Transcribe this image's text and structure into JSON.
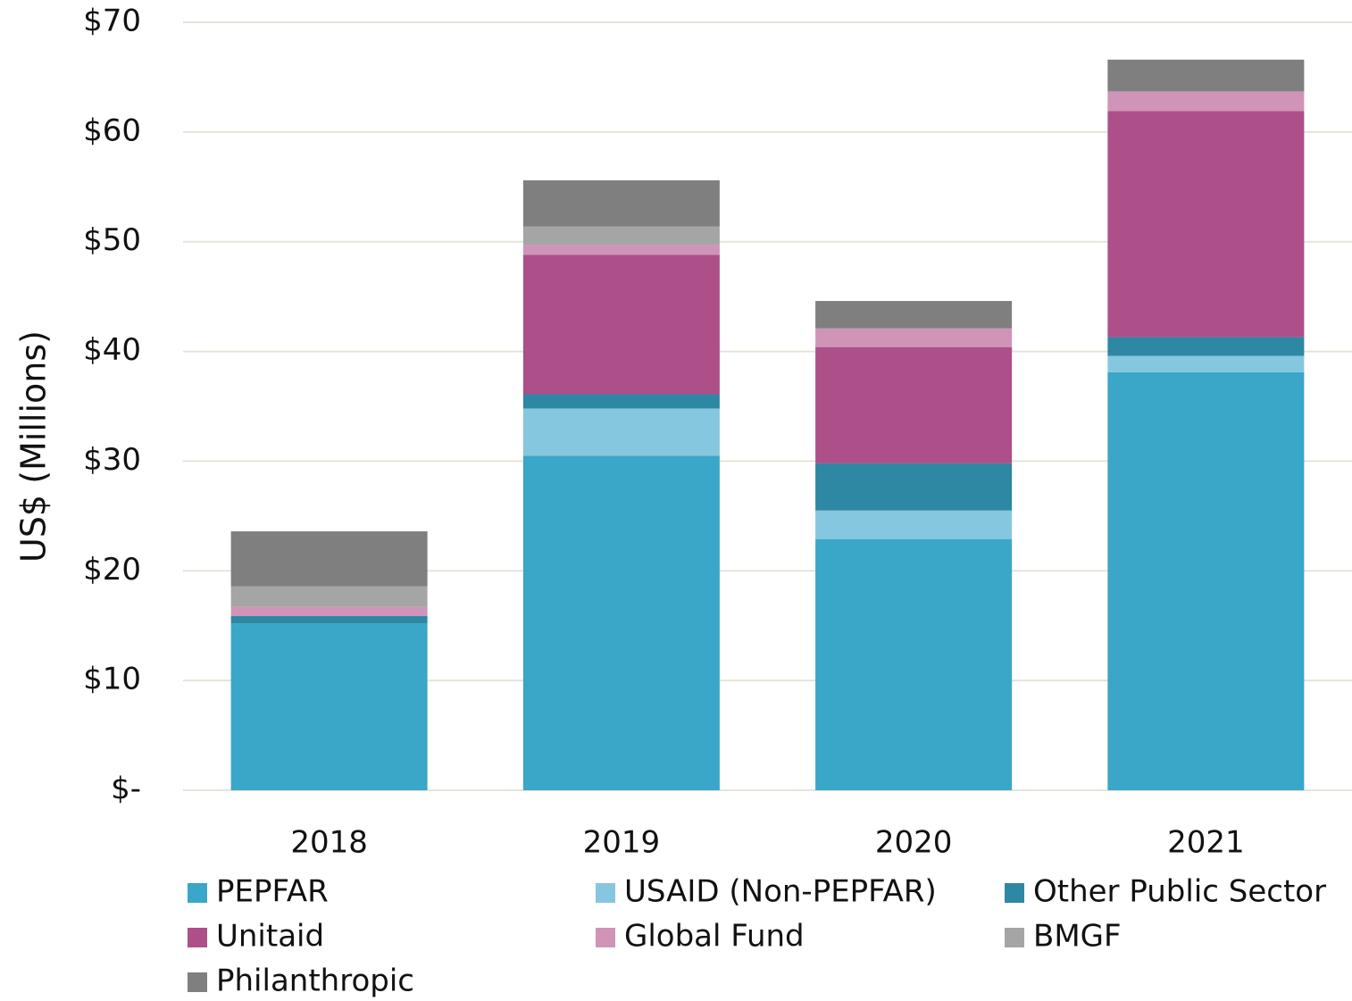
{
  "chart_data": {
    "type": "stacked_bar",
    "y_label": "US$ (Millions)",
    "categories": [
      "2018",
      "2019",
      "2020",
      "2021"
    ],
    "series": [
      {
        "name": "PEPFAR",
        "color": "#3aa6c8",
        "values": [
          15.2,
          30.5,
          22.9,
          38.1
        ]
      },
      {
        "name": "USAID (Non-PEPFAR)",
        "color": "#85c7de",
        "values": [
          0,
          4.3,
          2.6,
          1.5
        ]
      },
      {
        "name": "Other Public Sector",
        "color": "#2e87a3",
        "values": [
          0.7,
          1.3,
          4.3,
          1.7
        ]
      },
      {
        "name": "Unitaid",
        "color": "#ad4f88",
        "values": [
          0,
          12.7,
          10.6,
          20.6
        ]
      },
      {
        "name": "Global Fund",
        "color": "#d094b8",
        "values": [
          0.8,
          0.9,
          1.7,
          1.8
        ]
      },
      {
        "name": "BMGF",
        "color": "#a5a5a5",
        "values": [
          1.9,
          1.7,
          0,
          0
        ]
      },
      {
        "name": "Philanthropic",
        "color": "#7f7f7f",
        "values": [
          5.0,
          4.2,
          2.5,
          2.9
        ]
      }
    ],
    "ylim": [
      0,
      70
    ],
    "yticks": [
      {
        "value": 0,
        "label": "$-"
      },
      {
        "value": 10,
        "label": "$10"
      },
      {
        "value": 20,
        "label": "$20"
      },
      {
        "value": 30,
        "label": "$30"
      },
      {
        "value": 40,
        "label": "$40"
      },
      {
        "value": 50,
        "label": "$50"
      },
      {
        "value": 60,
        "label": "$60"
      },
      {
        "value": 70,
        "label": "$70"
      }
    ],
    "grid": true
  }
}
